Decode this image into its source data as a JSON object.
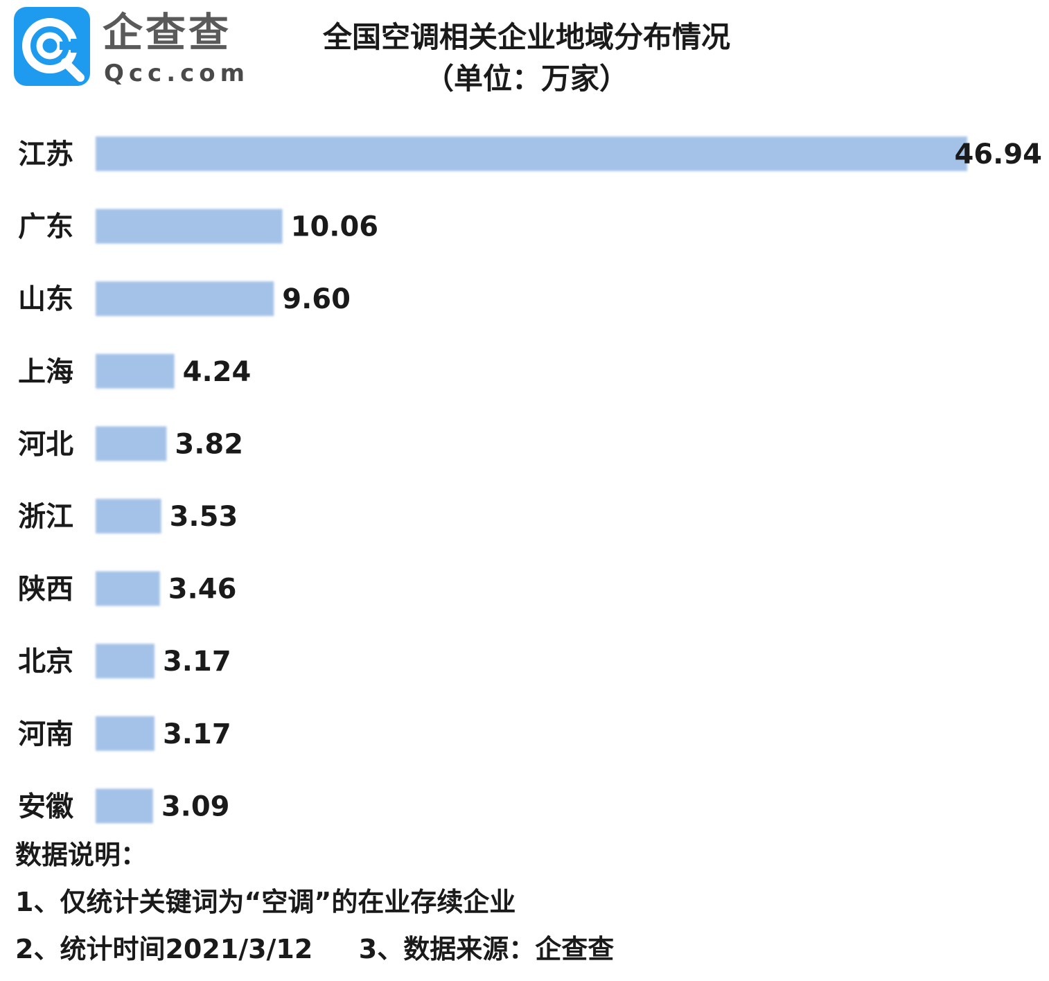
{
  "logo": {
    "name_cn": "企查查",
    "name_en": "Qcc.com",
    "brand_color": "#1e9bef"
  },
  "title_line1": "全国空调相关企业地域分布情况",
  "title_line2": "（单位：万家）",
  "chart_data": {
    "type": "bar",
    "orientation": "horizontal",
    "categories": [
      "江苏",
      "广东",
      "山东",
      "上海",
      "河北",
      "浙江",
      "陕西",
      "北京",
      "河南",
      "安徽"
    ],
    "values": [
      46.94,
      10.06,
      9.6,
      4.24,
      3.82,
      3.53,
      3.46,
      3.17,
      3.17,
      3.09
    ],
    "value_labels": [
      "46.94",
      "10.06",
      "9.60",
      "4.24",
      "3.82",
      "3.53",
      "3.46",
      "3.17",
      "3.17",
      "3.09"
    ],
    "bar_color": "#a4c2e8",
    "grid": false,
    "legend": "none"
  },
  "notes": {
    "heading": "数据说明：",
    "line1": "1、仅统计关键词为“空调”的在业存续企业",
    "line2a": "2、统计时间2021/3/12",
    "line2b": "3、数据来源：企查查"
  }
}
